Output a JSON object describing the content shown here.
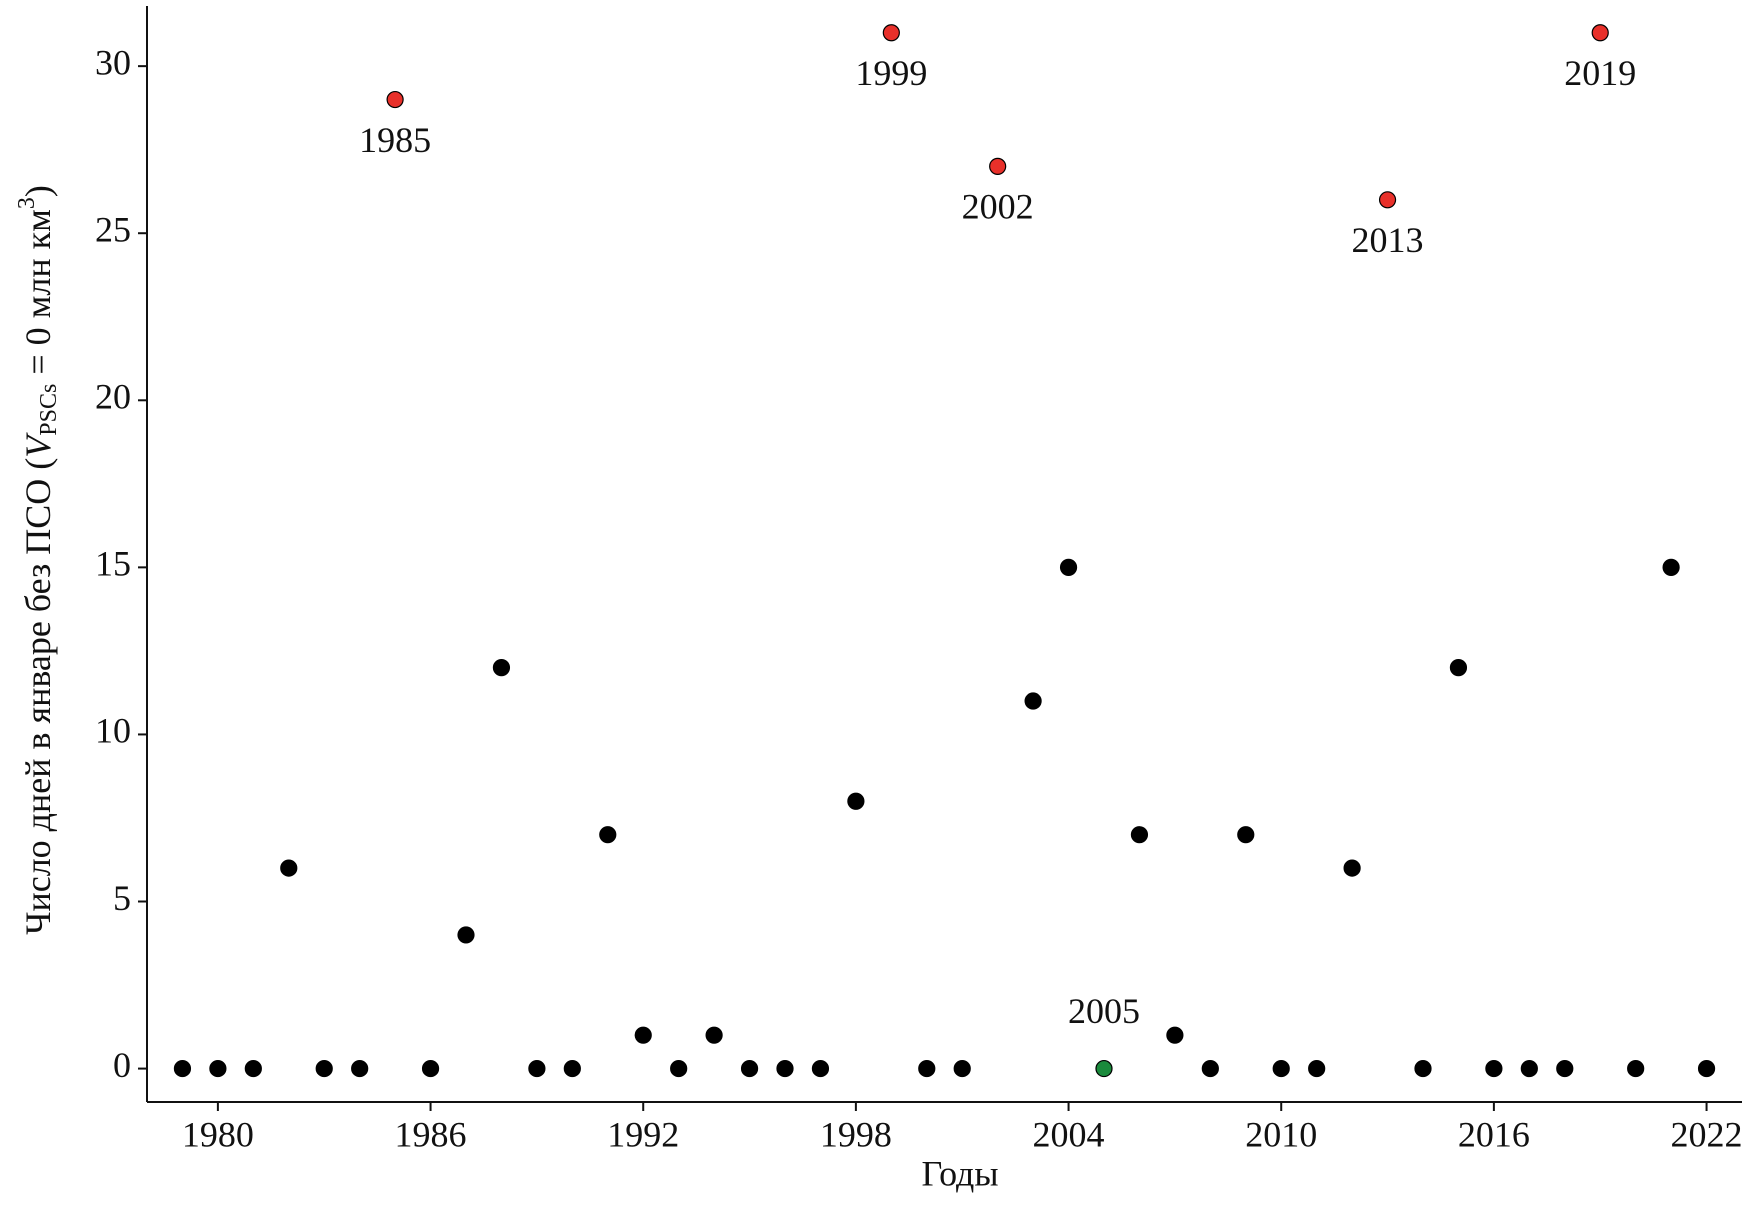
{
  "chart_data": {
    "type": "scatter",
    "xlabel": "Годы",
    "ylabel": {
      "prefix": "Число дней в январе без ПСО (",
      "var": "V",
      "sub": "PSCs",
      "mid": " = 0 млн км",
      "sup": "3",
      "suffix": ")"
    },
    "x": [
      1979,
      1980,
      1981,
      1982,
      1983,
      1984,
      1985,
      1986,
      1987,
      1988,
      1989,
      1990,
      1991,
      1992,
      1993,
      1994,
      1995,
      1996,
      1997,
      1998,
      1999,
      2000,
      2001,
      2002,
      2003,
      2004,
      2005,
      2006,
      2007,
      2008,
      2009,
      2010,
      2011,
      2012,
      2013,
      2014,
      2015,
      2016,
      2017,
      2018,
      2019,
      2020,
      2021,
      2022
    ],
    "values": [
      0,
      0,
      0,
      6,
      0,
      0,
      29,
      0,
      4,
      12,
      0,
      0,
      7,
      1,
      0,
      1,
      0,
      0,
      0,
      8,
      31,
      0,
      0,
      27,
      11,
      15,
      0,
      7,
      1,
      0,
      7,
      0,
      0,
      6,
      26,
      0,
      12,
      0,
      0,
      0,
      31,
      0,
      15,
      0
    ],
    "color": "#000000",
    "colors": [
      "#000000",
      "#000000",
      "#000000",
      "#000000",
      "#000000",
      "#000000",
      "#e8302a",
      "#000000",
      "#000000",
      "#000000",
      "#000000",
      "#000000",
      "#000000",
      "#000000",
      "#000000",
      "#000000",
      "#000000",
      "#000000",
      "#000000",
      "#000000",
      "#e8302a",
      "#000000",
      "#000000",
      "#e8302a",
      "#000000",
      "#000000",
      "#1a8a3c",
      "#000000",
      "#000000",
      "#000000",
      "#000000",
      "#000000",
      "#000000",
      "#000000",
      "#e8302a",
      "#000000",
      "#000000",
      "#000000",
      "#000000",
      "#000000",
      "#e8302a",
      "#000000",
      "#000000",
      "#000000"
    ],
    "xlim": [
      1978,
      2023
    ],
    "xticks": [
      1980,
      1986,
      1992,
      1998,
      2004,
      2010,
      2016,
      2022
    ],
    "ylim": [
      -1,
      31.8
    ],
    "yticks": [
      0,
      5,
      10,
      15,
      20,
      25,
      30
    ],
    "grid": false
  }
}
